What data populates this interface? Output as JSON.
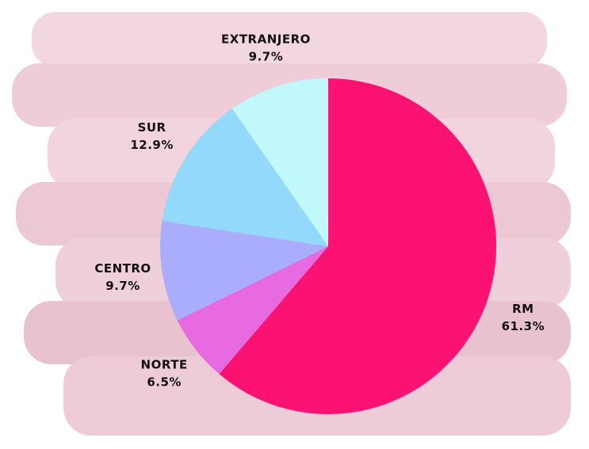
{
  "chart_data": {
    "type": "pie",
    "categories": [
      "RM",
      "NORTE",
      "CENTRO",
      "SUR",
      "EXTRANJERO"
    ],
    "values": [
      61.3,
      6.5,
      9.7,
      12.9,
      9.7
    ],
    "value_labels": [
      "61.3%",
      "6.5%",
      "9.7%",
      "12.9%",
      "9.7%"
    ],
    "colors": [
      "#fc1272",
      "#e86ae0",
      "#a9adfc",
      "#93d9fb",
      "#c0f8fc"
    ]
  }
}
